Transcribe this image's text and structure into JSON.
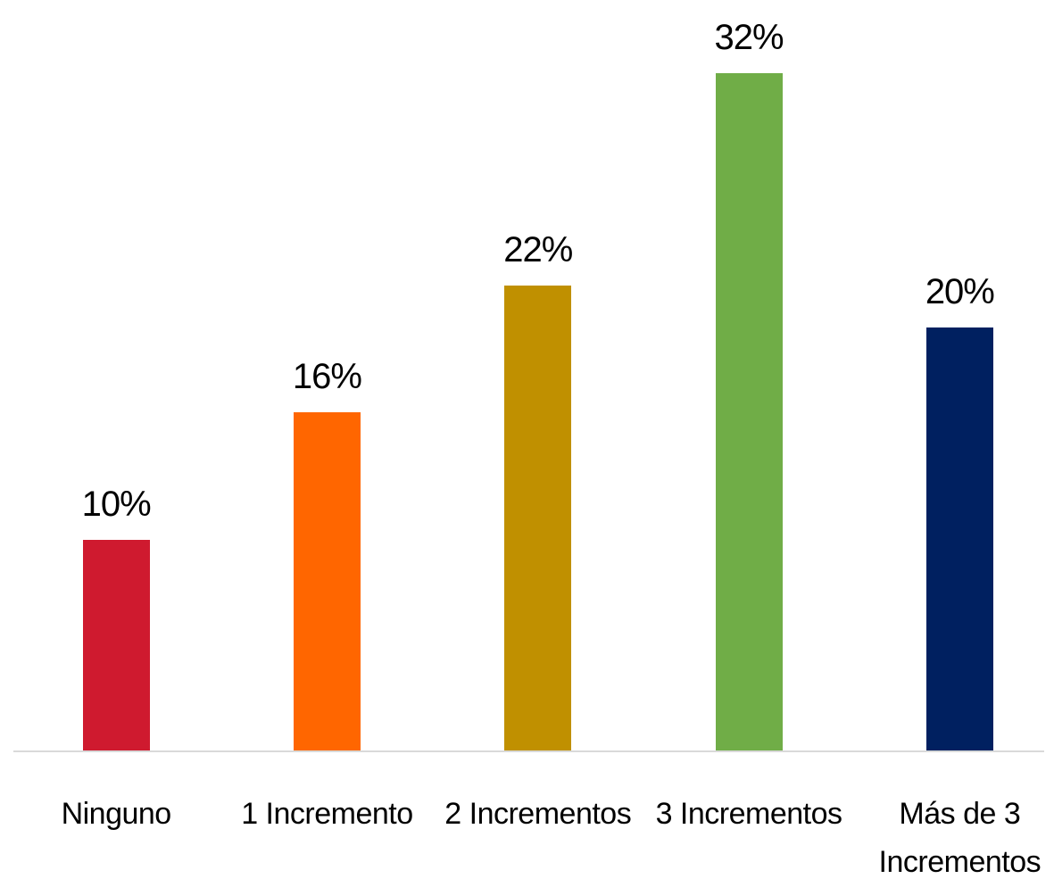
{
  "chart_data": {
    "type": "bar",
    "categories": [
      "Ninguno",
      "1 Incremento",
      "2 Incrementos",
      "3 Incrementos",
      "Más de 3 Incrementos"
    ],
    "values": [
      10,
      16,
      22,
      32,
      20
    ],
    "value_labels": [
      "10%",
      "16%",
      "22%",
      "32%",
      "20%"
    ],
    "colors": [
      "#cf1a2f",
      "#ff6600",
      "#c09000",
      "#70ad47",
      "#002060"
    ]
  }
}
